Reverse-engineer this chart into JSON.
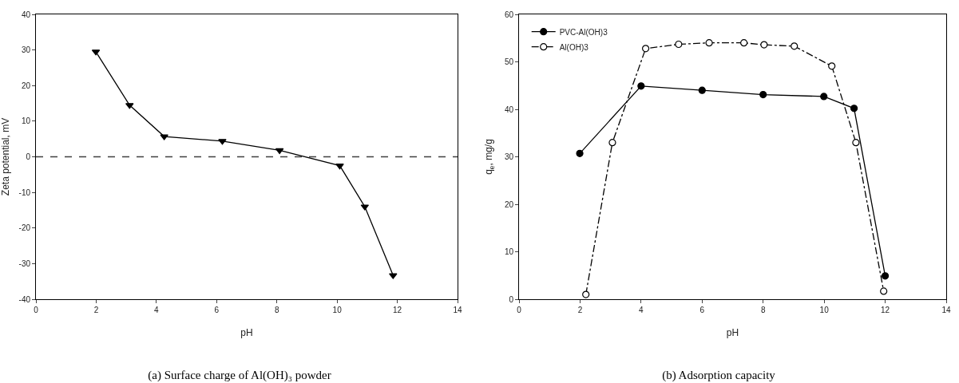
{
  "chart_data": [
    {
      "type": "line",
      "title": "(a) Surface charge of Al(OH)₃ powder",
      "xlabel": "pH",
      "ylabel": "Zeta potential, mV",
      "x": [
        1.99,
        3.11,
        4.26,
        6.19,
        8.09,
        10.09,
        10.92,
        11.86
      ],
      "series": [
        {
          "color": "#000000",
          "values": [
            29.5,
            14.5,
            5.7,
            4.4,
            1.8,
            -2.5,
            -14,
            -33.3
          ]
        }
      ],
      "xlim": [
        0,
        14
      ],
      "xticks": [
        0,
        2,
        4,
        6,
        8,
        10,
        12,
        14
      ],
      "ylim": [
        -40,
        40
      ],
      "yticks": [
        -40,
        -30,
        -20,
        -10,
        0,
        10,
        20,
        30,
        40
      ],
      "ref_lines": [
        {
          "axis": "y",
          "value": 0,
          "line_style": "dashed",
          "color": "#404040"
        }
      ],
      "grid": false,
      "legend": false,
      "marker": "triangle",
      "line_style": "solid"
    },
    {
      "type": "line",
      "title": "(b) Adsorption capacity",
      "xlabel": "pH",
      "ylabel": "q$_{e}$, mg/g",
      "series": [
        {
          "name": "PVC-Al(OH)3",
          "color": "#000000",
          "marker": "circle",
          "line_style": "solid",
          "x": [
            1.99,
            4.0,
            6.0,
            8.0,
            9.99,
            10.98,
            12.0
          ],
          "values": [
            30.7,
            44.9,
            44.0,
            43.1,
            42.7,
            40.2,
            4.9
          ]
        },
        {
          "name": "Al(OH)3",
          "color": "#000000",
          "marker": "circle-open",
          "line_style": "dashdot",
          "x": [
            2.19,
            3.06,
            4.15,
            5.23,
            6.23,
            7.37,
            8.03,
            9.02,
            10.25,
            11.04,
            11.95
          ],
          "values": [
            1.0,
            33.0,
            52.8,
            53.7,
            54.0,
            54.0,
            53.6,
            53.3,
            49.1,
            33.0,
            1.7
          ]
        }
      ],
      "xlim": [
        0,
        14
      ],
      "xticks": [
        0,
        2,
        4,
        6,
        8,
        10,
        12,
        14
      ],
      "ylim": [
        0,
        60
      ],
      "yticks": [
        0,
        10,
        20,
        30,
        40,
        50,
        60
      ],
      "grid": false,
      "legend": "top left"
    }
  ]
}
